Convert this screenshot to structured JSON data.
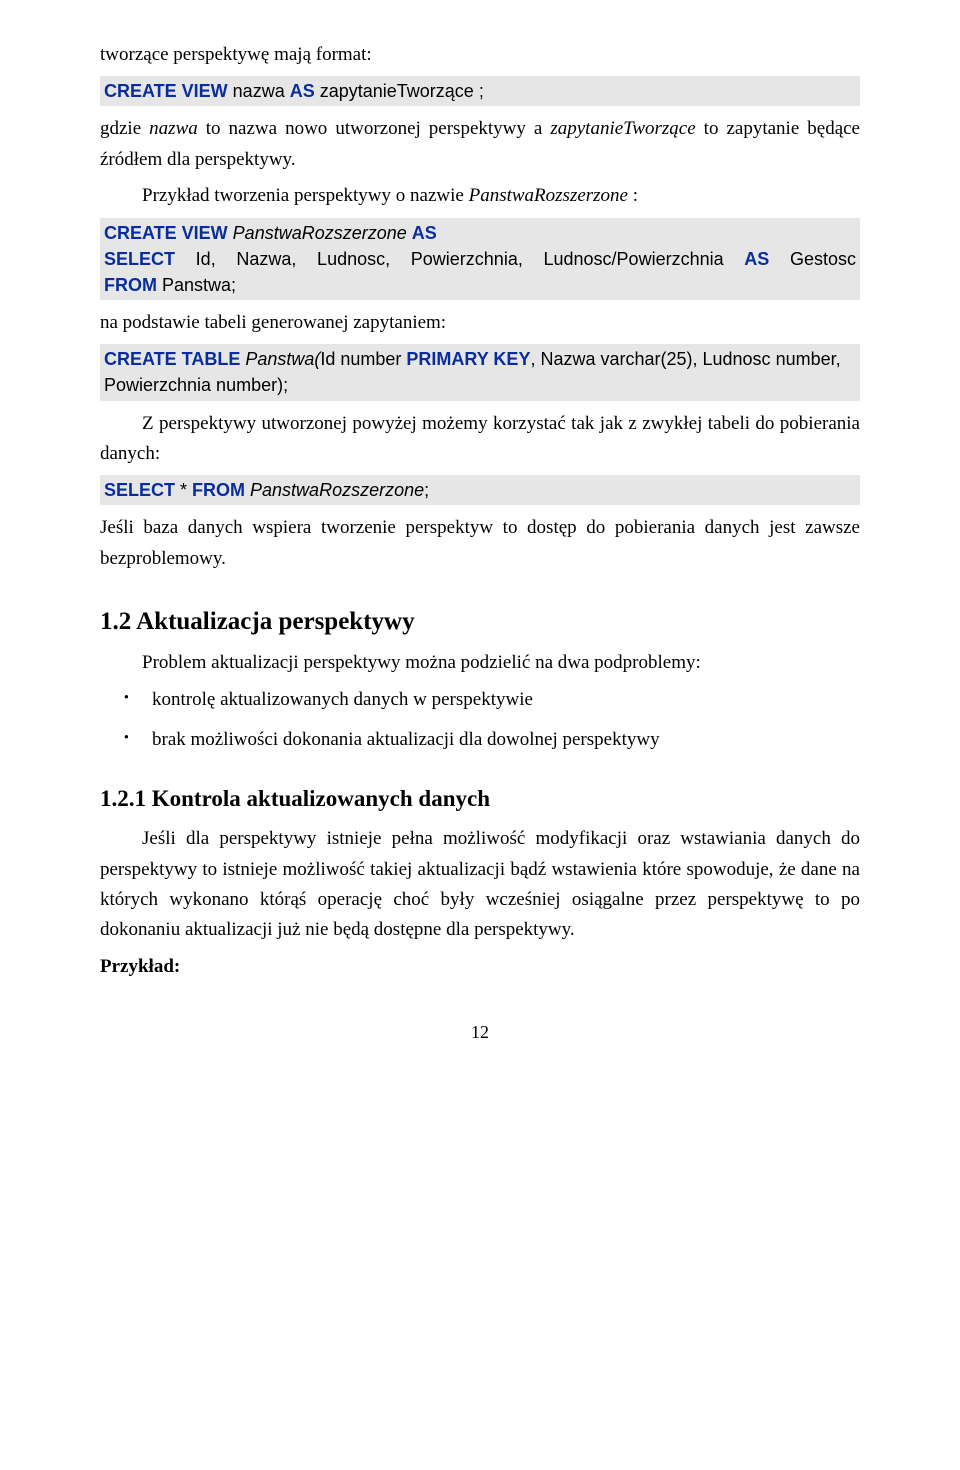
{
  "colors": {
    "background": "#ffffff",
    "text": "#000000",
    "codebox_bg": "#e6e6e6",
    "sql_keyword": "#0a2d9e"
  },
  "typography": {
    "body_font": "Times New Roman",
    "body_size_pt": 14,
    "code_font": "Arial",
    "code_size_pt": 13,
    "h2_size_pt": 19,
    "h3_size_pt": 17
  },
  "p1": "tworzące perspektywę mają format:",
  "code1": {
    "kw_create_view": "CREATE VIEW",
    "tok_nazwa": " nazwa ",
    "kw_as": "AS",
    "tok_zapyt": " zapytanieTworzące ",
    "tok_semi": ";"
  },
  "p2_a": "gdzie ",
  "p2_b_i": "nazwa",
  "p2_c": " to nazwa nowo utworzonej perspektywy a ",
  "p2_d_i": "zapytanieTworzące",
  "p2_e": "  to zapytanie będące źródłem dla perspektywy.",
  "p3_a": "Przykład tworzenia perspektywy o nazwie ",
  "p3_b_i": "PanstwaRozszerzone",
  "p3_c": " :",
  "code2": {
    "l1_kw1": "CREATE VIEW",
    "l1_mid": " PanstwaRozszerzone ",
    "l1_kw2": "AS",
    "l2_kw1": "SELECT",
    "l2_mid": " Id, Nazwa, Ludnosc, Powierzchnia, Ludnosc/Powierzchnia ",
    "l2_kw2": "AS",
    "l2_tail": " Gestosc",
    "l3_kw": "FROM",
    "l3_tail": " Panstwa;"
  },
  "p4": "na podstawie tabeli generowanej zapytaniem:",
  "code3": {
    "l1_kw1": "CREATE TABLE",
    "l1_mid1": " Panstwa(",
    "l1_id": "Id number ",
    "l1_kw2": "PRIMARY KEY",
    "l1_mid2": ", Nazwa varchar(25), Ludnosc number, Powierzchnia number);"
  },
  "p5": "Z perspektywy utworzonej powyżej możemy  korzystać tak jak z zwykłej tabeli do pobierania danych:",
  "code4": {
    "kw1": "SELECT",
    "mid": " * ",
    "kw2": "FROM",
    "tail_i": " PanstwaRozszerzone",
    "semi": ";"
  },
  "p6": "Jeśli baza danych wspiera tworzenie perspektyw to dostęp do pobierania danych jest zawsze bezproblemowy.",
  "h2_num": "1.2",
  "h2_txt": "  Aktualizacja perspektywy",
  "p7": "Problem aktualizacji perspektywy można podzielić na dwa podproblemy:",
  "bullets": {
    "0": "kontrolę aktualizowanych danych w perspektywie",
    "1": "brak możliwości dokonania aktualizacji dla dowolnej perspektywy"
  },
  "h3_num": "1.2.1",
  "h3_txt": "   Kontrola aktualizowanych danych",
  "p8": "Jeśli dla perspektywy istnieje pełna możliwość modyfikacji oraz wstawiania danych do perspektywy to istnieje możliwość takiej aktualizacji bądź wstawienia które spowoduje, że dane na których wykonano którąś operację choć były wcześniej osiągalne przez perspektywę to po dokonaniu aktualizacji już nie będą dostępne dla perspektywy.",
  "p9": "Przykład:",
  "pagenum": "12"
}
